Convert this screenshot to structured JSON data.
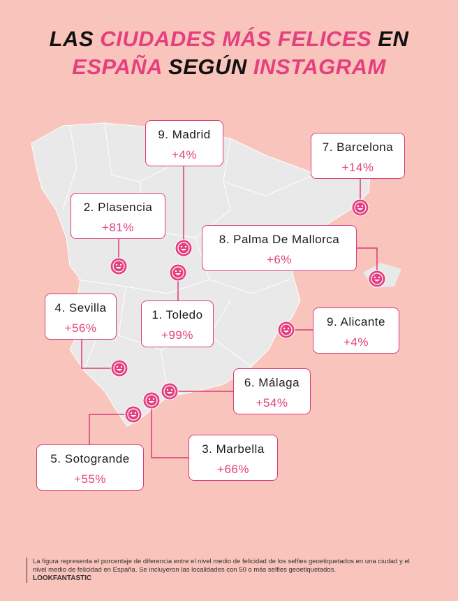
{
  "title": {
    "line1": [
      {
        "text": "LAS",
        "accent": false
      },
      {
        "text": "CIUDADES MÁS FELICES",
        "accent": true
      },
      {
        "text": "EN",
        "accent": false
      }
    ],
    "line2": [
      {
        "text": "ESPAÑA",
        "accent": true
      },
      {
        "text": "SEGÚN",
        "accent": false
      },
      {
        "text": "INSTAGRAM",
        "accent": true
      }
    ]
  },
  "cities": [
    {
      "name": "9. Madrid",
      "value": "+4%"
    },
    {
      "name": "7. Barcelona",
      "value": "+14%"
    },
    {
      "name": "2. Plasencia",
      "value": "+81%"
    },
    {
      "name": "8. Palma De Mallorca",
      "value": "+6%"
    },
    {
      "name": "4. Sevilla",
      "value": "+56%"
    },
    {
      "name": "1. Toledo",
      "value": "+99%"
    },
    {
      "name": "9. Alicante",
      "value": "+4%"
    },
    {
      "name": "6. Málaga",
      "value": "+54%"
    },
    {
      "name": "3. Marbella",
      "value": "+66%"
    },
    {
      "name": "5. Sotogrande",
      "value": "+55%"
    }
  ],
  "footer": {
    "note": "La figura representa el porcentaje de diferencia entre el nivel medio de felicidad de los selfies geoetiquetados en una ciudad y el nivel medio de felicidad en España. Se incluyeron las localidades con 50 o más selfies geoetiquetados.",
    "brand": "LOOKFANTASTIC"
  }
}
